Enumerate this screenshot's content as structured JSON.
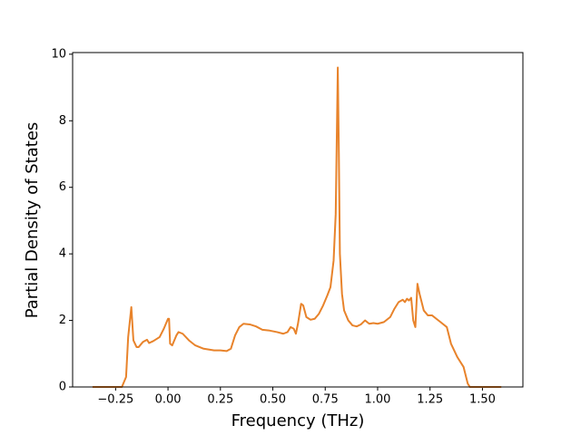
{
  "chart_data": {
    "type": "line",
    "x_label": "Frequency (THz)",
    "y_label": "Partial Density of States",
    "x": [
      -0.36,
      -0.22,
      -0.2,
      -0.19,
      -0.175,
      -0.165,
      -0.15,
      -0.14,
      -0.12,
      -0.1,
      -0.09,
      -0.07,
      -0.04,
      -0.02,
      0.0,
      0.005,
      0.01,
      0.02,
      0.04,
      0.05,
      0.07,
      0.1,
      0.13,
      0.17,
      0.22,
      0.25,
      0.28,
      0.3,
      0.32,
      0.34,
      0.36,
      0.39,
      0.42,
      0.45,
      0.48,
      0.52,
      0.55,
      0.57,
      0.585,
      0.6,
      0.61,
      0.62,
      0.635,
      0.645,
      0.66,
      0.68,
      0.7,
      0.72,
      0.74,
      0.76,
      0.775,
      0.79,
      0.8,
      0.81,
      0.815,
      0.82,
      0.83,
      0.84,
      0.86,
      0.88,
      0.9,
      0.92,
      0.94,
      0.96,
      0.98,
      1.0,
      1.03,
      1.06,
      1.08,
      1.1,
      1.12,
      1.13,
      1.14,
      1.15,
      1.16,
      1.17,
      1.18,
      1.19,
      1.2,
      1.22,
      1.24,
      1.26,
      1.28,
      1.3,
      1.33,
      1.35,
      1.38,
      1.41,
      1.43,
      1.44,
      1.59
    ],
    "series": [
      {
        "color": "#e8832b",
        "values": [
          0,
          0,
          0.3,
          1.5,
          2.4,
          1.4,
          1.2,
          1.2,
          1.35,
          1.42,
          1.32,
          1.38,
          1.5,
          1.75,
          2.05,
          2.05,
          1.3,
          1.25,
          1.55,
          1.65,
          1.6,
          1.4,
          1.25,
          1.15,
          1.1,
          1.1,
          1.08,
          1.15,
          1.55,
          1.8,
          1.9,
          1.88,
          1.82,
          1.72,
          1.7,
          1.65,
          1.6,
          1.65,
          1.8,
          1.75,
          1.6,
          1.9,
          2.5,
          2.45,
          2.1,
          2.02,
          2.05,
          2.2,
          2.45,
          2.75,
          3.0,
          3.8,
          5.2,
          9.6,
          7.0,
          4.0,
          2.8,
          2.3,
          2.0,
          1.85,
          1.82,
          1.88,
          2.0,
          1.9,
          1.92,
          1.9,
          1.95,
          2.1,
          2.35,
          2.55,
          2.62,
          2.55,
          2.65,
          2.6,
          2.68,
          2.0,
          1.8,
          3.1,
          2.8,
          2.3,
          2.15,
          2.15,
          2.05,
          1.95,
          1.8,
          1.3,
          0.9,
          0.6,
          0.1,
          0,
          0
        ]
      }
    ],
    "xlim": [
      -0.455,
      1.693
    ],
    "ylim": [
      0,
      10.05
    ],
    "xticks": [
      {
        "value": -0.25,
        "label": "−0.25"
      },
      {
        "value": 0,
        "label": "0.00"
      },
      {
        "value": 0.25,
        "label": "0.25"
      },
      {
        "value": 0.5,
        "label": "0.50"
      },
      {
        "value": 0.75,
        "label": "0.75"
      },
      {
        "value": 1,
        "label": "1.00"
      },
      {
        "value": 1.25,
        "label": "1.25"
      },
      {
        "value": 1.5,
        "label": "1.50"
      }
    ],
    "yticks": [
      0,
      2,
      4,
      6,
      8,
      10
    ]
  }
}
